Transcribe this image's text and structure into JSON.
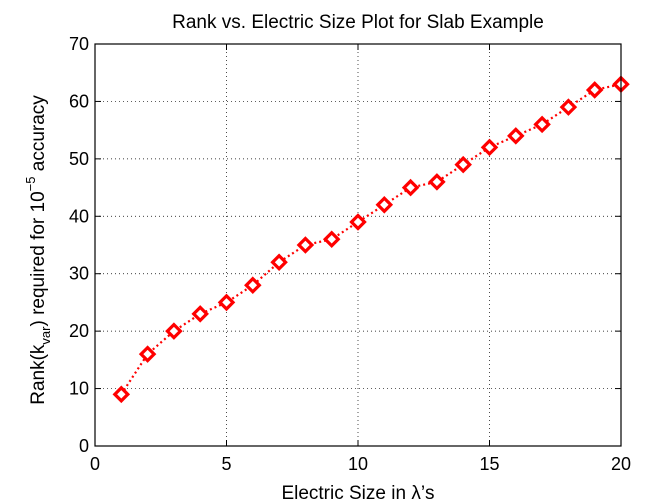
{
  "chart_data": {
    "type": "line",
    "title": "Rank vs. Electric Size Plot for Slab Example",
    "xlabel": {
      "prefix": "Electric Size in ",
      "symbol": "λ",
      "suffix": "’s"
    },
    "ylabel": {
      "part1": "Rank(k",
      "subscript": "var",
      "part2": ") required for 10",
      "superscript": "−5",
      "part3": " accuracy"
    },
    "xlim": [
      0,
      20
    ],
    "ylim": [
      0,
      70
    ],
    "xticks": [
      0,
      5,
      10,
      15,
      20
    ],
    "yticks": [
      0,
      10,
      20,
      30,
      40,
      50,
      60,
      70
    ],
    "grid": true,
    "series": [
      {
        "line_style": "dotted",
        "marker": "diamond",
        "color": "#ff0000",
        "x": [
          1,
          2,
          3,
          4,
          5,
          6,
          7,
          8,
          9,
          10,
          11,
          12,
          13,
          14,
          15,
          16,
          17,
          18,
          19,
          20
        ],
        "y": [
          9,
          16,
          20,
          23,
          25,
          28,
          32,
          35,
          36,
          39,
          42,
          45,
          46,
          49,
          52,
          54,
          56,
          59,
          62,
          63
        ]
      }
    ]
  }
}
